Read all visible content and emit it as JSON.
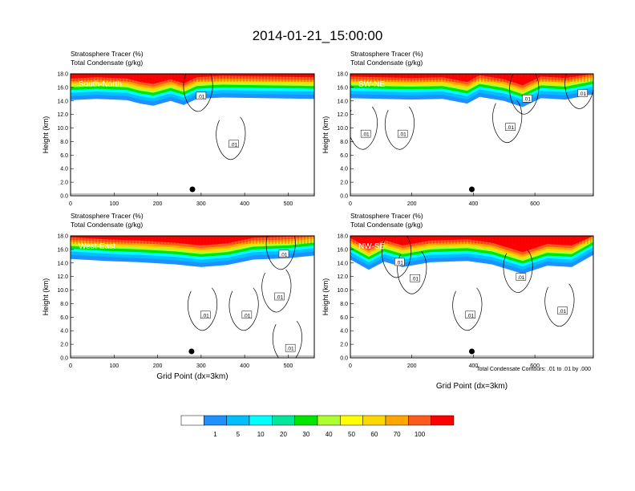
{
  "page": {
    "title": "2014-01-21_15:00:00",
    "footnote": "Total Condensate Contours: .01 to .01 by .000"
  },
  "colors": {
    "levels": [
      "#ffffff",
      "#1e90ff",
      "#00bfff",
      "#00ffff",
      "#00e69a",
      "#00e600",
      "#adff2f",
      "#ffff00",
      "#ffd700",
      "#ffa500",
      "#ff5a1e",
      "#ff0000"
    ],
    "contour": "#000000",
    "dot": "#000000"
  },
  "colorbar": {
    "labels": [
      "1",
      "5",
      "10",
      "20",
      "30",
      "40",
      "50",
      "60",
      "70",
      "100"
    ]
  },
  "chart_data": [
    {
      "type": "area",
      "panel": "top-left",
      "title_lines": [
        "Stratosphere Tracer   (%)",
        "Total Condensate   (g/kg)"
      ],
      "cross_section_label": "South-North",
      "ylabel": "Height (km)",
      "xlabel": "",
      "xlim": [
        0,
        560
      ],
      "ylim": [
        0,
        18
      ],
      "xticks": [
        "0",
        "100",
        "200",
        "300",
        "400",
        "500"
      ],
      "yticks": [
        "0.0",
        "2.0",
        "4.0",
        "6.0",
        "8.0",
        "10.0",
        "12.0",
        "14.0",
        "16.0",
        "18.0"
      ],
      "tropopause_km": [
        [
          0,
          15.3
        ],
        [
          60,
          15.5
        ],
        [
          130,
          15.3
        ],
        [
          160,
          14.8
        ],
        [
          190,
          14.5
        ],
        [
          230,
          15.2
        ],
        [
          260,
          14.6
        ],
        [
          290,
          15.5
        ],
        [
          350,
          15.7
        ],
        [
          450,
          15.6
        ],
        [
          560,
          15.5
        ]
      ],
      "contour_labels": [
        {
          "text": ".01",
          "x": 300,
          "y": 14.7
        },
        {
          "text": ".01",
          "x": 375,
          "y": 7.6
        }
      ],
      "marker_x": 280
    },
    {
      "type": "area",
      "panel": "top-right",
      "title_lines": [
        "Stratosphere Tracer   (%)",
        "Total Condensate   (g/kg)"
      ],
      "cross_section_label": "SW-NE",
      "ylabel": "Height (km)",
      "xlabel": "",
      "xlim": [
        0,
        790
      ],
      "ylim": [
        0,
        18
      ],
      "xticks": [
        "0",
        "200",
        "400",
        "600"
      ],
      "yticks": [
        "0.0",
        "2.0",
        "4.0",
        "6.0",
        "8.0",
        "10.0",
        "12.0",
        "14.0",
        "16.0",
        "18.0"
      ],
      "tropopause_km": [
        [
          0,
          15.6
        ],
        [
          100,
          15.5
        ],
        [
          200,
          15.4
        ],
        [
          300,
          15.5
        ],
        [
          380,
          14.8
        ],
        [
          420,
          15.8
        ],
        [
          500,
          15.2
        ],
        [
          560,
          14.3
        ],
        [
          620,
          15.6
        ],
        [
          700,
          15.4
        ],
        [
          790,
          16.2
        ]
      ],
      "contour_labels": [
        {
          "text": ".01",
          "x": 50,
          "y": 9.1
        },
        {
          "text": ".01",
          "x": 170,
          "y": 9.1
        },
        {
          "text": ".01",
          "x": 520,
          "y": 10.1
        },
        {
          "text": ".01",
          "x": 575,
          "y": 14.3
        },
        {
          "text": ".01",
          "x": 755,
          "y": 15.1
        }
      ],
      "marker_x": 395
    },
    {
      "type": "area",
      "panel": "bottom-left",
      "title_lines": [
        "Stratosphere Tracer   (%)",
        "Total Condensate   (g/kg)"
      ],
      "cross_section_label": "West-East",
      "ylabel": "Height (km)",
      "xlabel": "Grid Point (dx=3km)",
      "xlim": [
        0,
        560
      ],
      "ylim": [
        0,
        18
      ],
      "xticks": [
        "0",
        "100",
        "200",
        "300",
        "400",
        "500"
      ],
      "yticks": [
        "0.0",
        "2.0",
        "4.0",
        "6.0",
        "8.0",
        "10.0",
        "12.0",
        "14.0",
        "16.0",
        "18.0"
      ],
      "tropopause_km": [
        [
          0,
          15.8
        ],
        [
          80,
          15.5
        ],
        [
          160,
          15.3
        ],
        [
          240,
          15.0
        ],
        [
          300,
          14.6
        ],
        [
          360,
          14.9
        ],
        [
          420,
          15.7
        ],
        [
          500,
          15.9
        ],
        [
          560,
          16.3
        ]
      ],
      "contour_labels": [
        {
          "text": ".01",
          "x": 490,
          "y": 15.3
        },
        {
          "text": ".01",
          "x": 480,
          "y": 9.0
        },
        {
          "text": ".01",
          "x": 310,
          "y": 6.3
        },
        {
          "text": ".01",
          "x": 405,
          "y": 6.3
        },
        {
          "text": ".01",
          "x": 505,
          "y": 1.4
        }
      ],
      "marker_x": 278
    },
    {
      "type": "area",
      "panel": "bottom-right",
      "title_lines": [
        "Stratosphere Tracer   (%)",
        "Total Condensate   (g/kg)"
      ],
      "cross_section_label": "NW-SE",
      "ylabel": "Height (km)",
      "xlabel": "Grid Point (dx=3km)",
      "xlim": [
        0,
        790
      ],
      "ylim": [
        0,
        18
      ],
      "xticks": [
        "0",
        "200",
        "400",
        "600"
      ],
      "yticks": [
        "0.0",
        "2.0",
        "4.0",
        "6.0",
        "8.0",
        "10.0",
        "12.0",
        "14.0",
        "16.0",
        "18.0"
      ],
      "tropopause_km": [
        [
          0,
          15.7
        ],
        [
          60,
          14.2
        ],
        [
          110,
          15.4
        ],
        [
          170,
          14.6
        ],
        [
          260,
          15.3
        ],
        [
          380,
          15.5
        ],
        [
          460,
          15.0
        ],
        [
          560,
          13.6
        ],
        [
          640,
          14.8
        ],
        [
          720,
          14.6
        ],
        [
          790,
          16.4
        ]
      ],
      "contour_labels": [
        {
          "text": ".01",
          "x": 160,
          "y": 14.1
        },
        {
          "text": ".01",
          "x": 210,
          "y": 11.7
        },
        {
          "text": ".01",
          "x": 555,
          "y": 11.9
        },
        {
          "text": ".01",
          "x": 390,
          "y": 6.3
        },
        {
          "text": ".01",
          "x": 690,
          "y": 6.9
        }
      ],
      "marker_x": 395
    }
  ]
}
